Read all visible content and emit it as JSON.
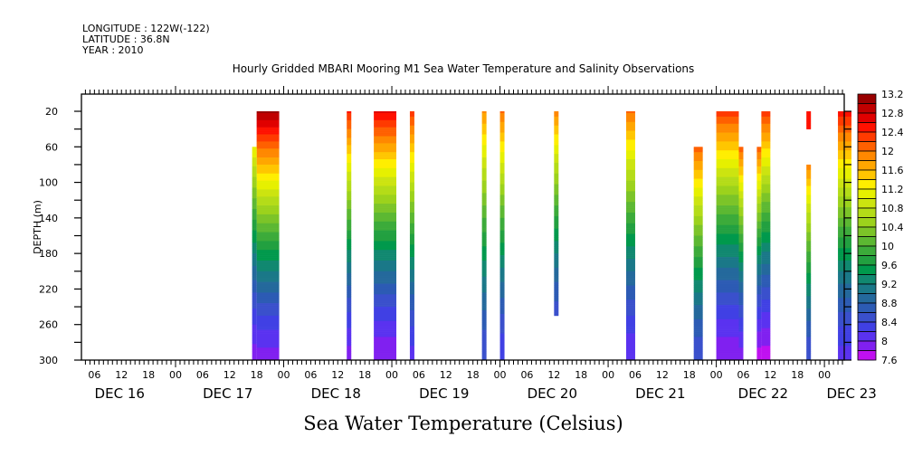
{
  "header": {
    "longitude": "LONGITUDE : 122W(-122)",
    "latitude": "LATITUDE : 36.8N",
    "year": "YEAR : 2010"
  },
  "chart_data": {
    "type": "heatmap",
    "title": "Hourly Gridded MBARI Mooring M1 Sea Water Temperature and Salinity Observations",
    "xlabel_bottom": "Sea Water Temperature (Celsius)",
    "ylabel": "DEPTH (m)",
    "xlim_hours_from_dec16_00": [
      3,
      172.5
    ],
    "ylim": [
      300,
      0
    ],
    "y_ticks": [
      20,
      60,
      100,
      140,
      180,
      220,
      260,
      300
    ],
    "x_hour_tick_labels": [
      "06",
      "12",
      "18",
      "00",
      "06",
      "12",
      "18",
      "00",
      "06",
      "12",
      "18",
      "00",
      "06",
      "12",
      "18",
      "00",
      "06",
      "12",
      "18",
      "00",
      "06",
      "12",
      "18",
      "00",
      "06",
      "12",
      "18",
      "00"
    ],
    "x_day_labels": [
      "DEC 16",
      "DEC 17",
      "DEC 18",
      "DEC 19",
      "DEC 20",
      "DEC 21",
      "DEC 22",
      "DEC 23"
    ],
    "colorbar": {
      "min": 7.6,
      "max": 13.2,
      "step": 0.2,
      "labels": [
        "13.2",
        "12.8",
        "12.4",
        "12",
        "11.6",
        "11.2",
        "10.8",
        "10.4",
        "10",
        "9.6",
        "9.2",
        "8.8",
        "8.4",
        "8",
        "7.6"
      ],
      "colors": [
        "#990000",
        "#c00000",
        "#e00000",
        "#ff1100",
        "#ff3a00",
        "#ff6000",
        "#ff8800",
        "#ffa600",
        "#ffc600",
        "#ffee00",
        "#e6f000",
        "#cce410",
        "#b4dc18",
        "#9cd21c",
        "#7cc428",
        "#5cb832",
        "#3cab3a",
        "#22a040",
        "#00994c",
        "#118870",
        "#1a7888",
        "#24699c",
        "#2c5bb4",
        "#3a50cc",
        "#4040e4",
        "#5a32f0",
        "#8020f0",
        "#c010f0"
      ]
    },
    "columns": [
      {
        "start_h": 42,
        "end_h": 47,
        "top_depth": 20,
        "bottom_depth": 300,
        "t_top": 13.0,
        "t_bottom": 7.9
      },
      {
        "start_h": 41,
        "end_h": 42,
        "top_depth": 60,
        "bottom_depth": 300,
        "t_top": 11.2,
        "t_bottom": 7.9
      },
      {
        "start_h": 62,
        "end_h": 63,
        "top_depth": 20,
        "bottom_depth": 300,
        "t_top": 12.4,
        "t_bottom": 7.9
      },
      {
        "start_h": 68,
        "end_h": 73,
        "top_depth": 20,
        "bottom_depth": 300,
        "t_top": 12.6,
        "t_bottom": 7.8
      },
      {
        "start_h": 76,
        "end_h": 77,
        "top_depth": 20,
        "bottom_depth": 300,
        "t_top": 12.3,
        "t_bottom": 8.1
      },
      {
        "start_h": 92,
        "end_h": 93,
        "top_depth": 20,
        "bottom_depth": 300,
        "t_top": 11.8,
        "t_bottom": 8.4
      },
      {
        "start_h": 96,
        "end_h": 97,
        "top_depth": 20,
        "bottom_depth": 300,
        "t_top": 12.0,
        "t_bottom": 8.2
      },
      {
        "start_h": 108,
        "end_h": 109,
        "top_depth": 20,
        "bottom_depth": 250,
        "t_top": 11.9,
        "t_bottom": 8.5
      },
      {
        "start_h": 124,
        "end_h": 126,
        "top_depth": 20,
        "bottom_depth": 300,
        "t_top": 12.0,
        "t_bottom": 8.0
      },
      {
        "start_h": 139,
        "end_h": 141,
        "top_depth": 60,
        "bottom_depth": 300,
        "t_top": 12.1,
        "t_bottom": 8.4
      },
      {
        "start_h": 144,
        "end_h": 149,
        "top_depth": 20,
        "bottom_depth": 300,
        "t_top": 12.3,
        "t_bottom": 7.8
      },
      {
        "start_h": 149,
        "end_h": 150,
        "top_depth": 60,
        "bottom_depth": 300,
        "t_top": 12.1,
        "t_bottom": 7.9
      },
      {
        "start_h": 153,
        "end_h": 154,
        "top_depth": 60,
        "bottom_depth": 300,
        "t_top": 12.1,
        "t_bottom": 7.7
      },
      {
        "start_h": 154,
        "end_h": 156,
        "top_depth": 20,
        "bottom_depth": 300,
        "t_top": 12.3,
        "t_bottom": 7.7
      },
      {
        "start_h": 164,
        "end_h": 165,
        "top_depth": 20,
        "bottom_depth": 40,
        "t_top": 12.4,
        "t_bottom": 12.4
      },
      {
        "start_h": 164,
        "end_h": 165,
        "top_depth": 80,
        "bottom_depth": 300,
        "t_top": 11.9,
        "t_bottom": 8.4
      },
      {
        "start_h": 171,
        "end_h": 174,
        "top_depth": 20,
        "bottom_depth": 300,
        "t_top": 12.5,
        "t_bottom": 8.1
      },
      {
        "start_h": 177,
        "end_h": 179,
        "top_depth": 20,
        "bottom_depth": 300,
        "t_top": 12.4,
        "t_bottom": 8.0
      }
    ]
  }
}
